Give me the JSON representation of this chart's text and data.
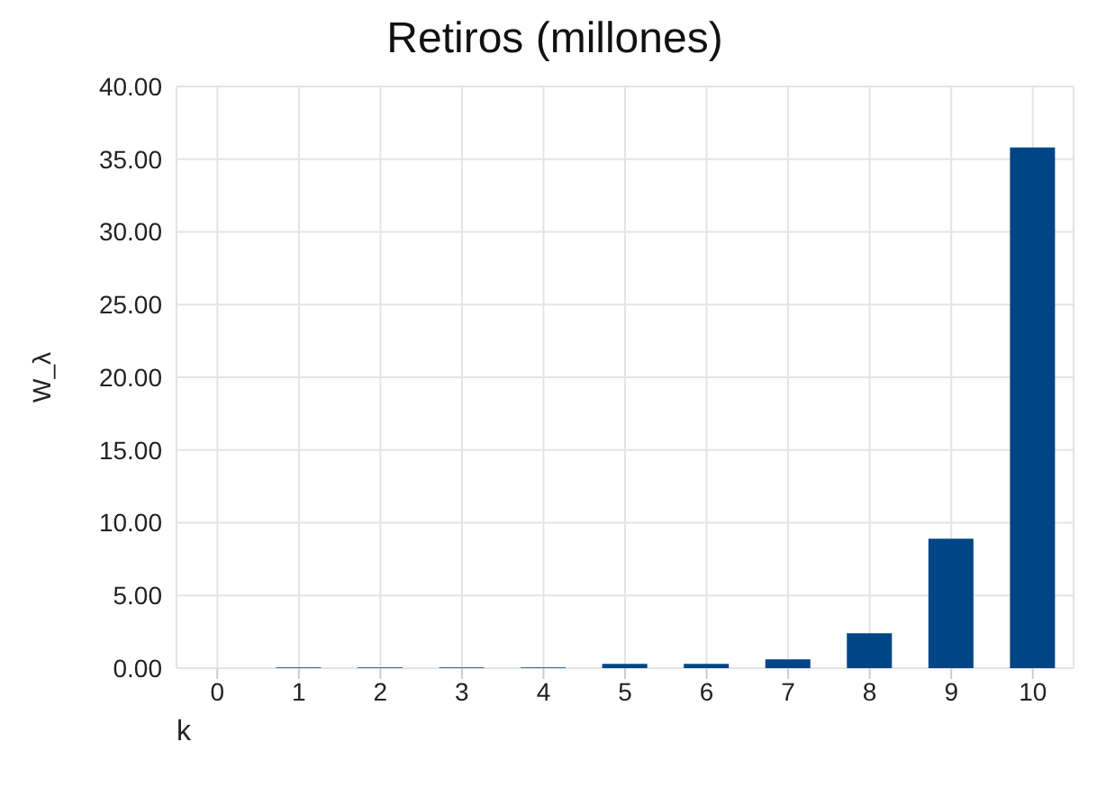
{
  "chart_data": {
    "type": "bar",
    "title": "Retiros (millones)",
    "xlabel": "k",
    "ylabel": "W_λ",
    "categories": [
      "0",
      "1",
      "2",
      "3",
      "4",
      "5",
      "6",
      "7",
      "8",
      "9",
      "10"
    ],
    "values": [
      0,
      0.05,
      0.05,
      0.05,
      0.05,
      0.3,
      0.3,
      0.6,
      2.4,
      8.9,
      35.8
    ],
    "color": "#004586",
    "ylim": [
      0,
      40
    ],
    "yticks": [
      {
        "value": 0,
        "label": "0.00"
      },
      {
        "value": 5,
        "label": "5.00"
      },
      {
        "value": 10,
        "label": "10.00"
      },
      {
        "value": 15,
        "label": "15.00"
      },
      {
        "value": 20,
        "label": "20.00"
      },
      {
        "value": 25,
        "label": "25.00"
      },
      {
        "value": 30,
        "label": "30.00"
      },
      {
        "value": 35,
        "label": "35.00"
      },
      {
        "value": 40,
        "label": "40.00"
      }
    ],
    "grid": true
  }
}
